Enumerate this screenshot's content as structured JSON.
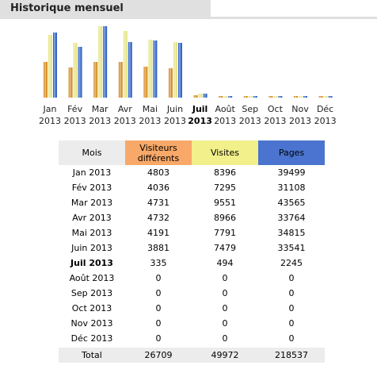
{
  "header": {
    "title": "Historique mensuel"
  },
  "colors": {
    "visitors": "#d8902c",
    "visits": "#e6e58a",
    "pages": "#3567c8"
  },
  "chart_data": {
    "type": "bar",
    "categories": [
      "Jan 2013",
      "Fév 2013",
      "Mar 2013",
      "Avr 2013",
      "Mai 2013",
      "Juin 2013",
      "Juil 2013",
      "Août 2013",
      "Sep 2013",
      "Oct 2013",
      "Nov 2013",
      "Déc 2013"
    ],
    "series": [
      {
        "name": "Visiteurs différents",
        "values": [
          4803,
          4036,
          4731,
          4732,
          4191,
          3881,
          335,
          0,
          0,
          0,
          0,
          0
        ]
      },
      {
        "name": "Visites",
        "values": [
          8396,
          7295,
          9551,
          8966,
          7791,
          7479,
          494,
          0,
          0,
          0,
          0,
          0
        ]
      },
      {
        "name": "Pages",
        "values": [
          39499,
          31108,
          43565,
          33764,
          34815,
          33541,
          2245,
          0,
          0,
          0,
          0,
          0
        ]
      }
    ],
    "current_month": "Juil 2013"
  },
  "months": [
    {
      "m": "Jan",
      "y": "2013"
    },
    {
      "m": "Fév",
      "y": "2013"
    },
    {
      "m": "Mar",
      "y": "2013"
    },
    {
      "m": "Avr",
      "y": "2013"
    },
    {
      "m": "Mai",
      "y": "2013"
    },
    {
      "m": "Juin",
      "y": "2013"
    },
    {
      "m": "Juil",
      "y": "2013"
    },
    {
      "m": "Août",
      "y": "2013"
    },
    {
      "m": "Sep",
      "y": "2013"
    },
    {
      "m": "Oct",
      "y": "2013"
    },
    {
      "m": "Nov",
      "y": "2013"
    },
    {
      "m": "Déc",
      "y": "2013"
    }
  ],
  "table": {
    "headers": {
      "month": "Mois",
      "visitors": "Visiteurs différents",
      "visits": "Visites",
      "pages": "Pages"
    },
    "rows": [
      {
        "month": "Jan 2013",
        "visitors": "4803",
        "visits": "8396",
        "pages": "39499"
      },
      {
        "month": "Fév 2013",
        "visitors": "4036",
        "visits": "7295",
        "pages": "31108"
      },
      {
        "month": "Mar 2013",
        "visitors": "4731",
        "visits": "9551",
        "pages": "43565"
      },
      {
        "month": "Avr 2013",
        "visitors": "4732",
        "visits": "8966",
        "pages": "33764"
      },
      {
        "month": "Mai 2013",
        "visitors": "4191",
        "visits": "7791",
        "pages": "34815"
      },
      {
        "month": "Juin 2013",
        "visitors": "3881",
        "visits": "7479",
        "pages": "33541"
      },
      {
        "month": "Juil 2013",
        "visitors": "335",
        "visits": "494",
        "pages": "2245"
      },
      {
        "month": "Août 2013",
        "visitors": "0",
        "visits": "0",
        "pages": "0"
      },
      {
        "month": "Sep 2013",
        "visitors": "0",
        "visits": "0",
        "pages": "0"
      },
      {
        "month": "Oct 2013",
        "visitors": "0",
        "visits": "0",
        "pages": "0"
      },
      {
        "month": "Nov 2013",
        "visitors": "0",
        "visits": "0",
        "pages": "0"
      },
      {
        "month": "Déc 2013",
        "visitors": "0",
        "visits": "0",
        "pages": "0"
      }
    ],
    "total": {
      "month": "Total",
      "visitors": "26709",
      "visits": "49972",
      "pages": "218537"
    }
  }
}
